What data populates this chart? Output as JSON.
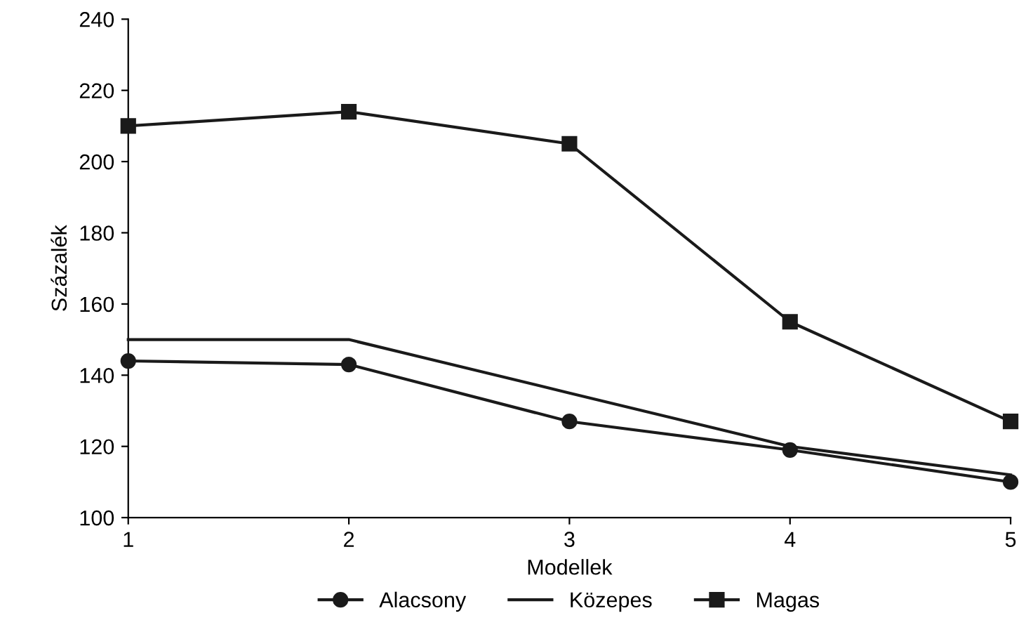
{
  "chart_data": {
    "type": "line",
    "xlabel": "Modellek",
    "ylabel": "Százalék",
    "x": [
      1,
      2,
      3,
      4,
      5
    ],
    "series": [
      {
        "name": "Alacsony",
        "color": "#1a1a1a",
        "marker": "circle",
        "values": [
          144,
          143,
          127,
          119,
          110
        ]
      },
      {
        "name": "Közepes",
        "color": "#1a1a1a",
        "marker": "none",
        "values": [
          150,
          150,
          135,
          120,
          112
        ]
      },
      {
        "name": "Magas",
        "color": "#1a1a1a",
        "marker": "square",
        "values": [
          210,
          214,
          205,
          155,
          127
        ]
      }
    ],
    "xlim": [
      1,
      5
    ],
    "xticks": [
      1,
      2,
      3,
      4,
      5
    ],
    "ylim": [
      100,
      240
    ],
    "yticks": [
      100,
      120,
      140,
      160,
      180,
      200,
      220,
      240
    ],
    "grid": false,
    "legend": "bottom",
    "line_style": "solid"
  }
}
